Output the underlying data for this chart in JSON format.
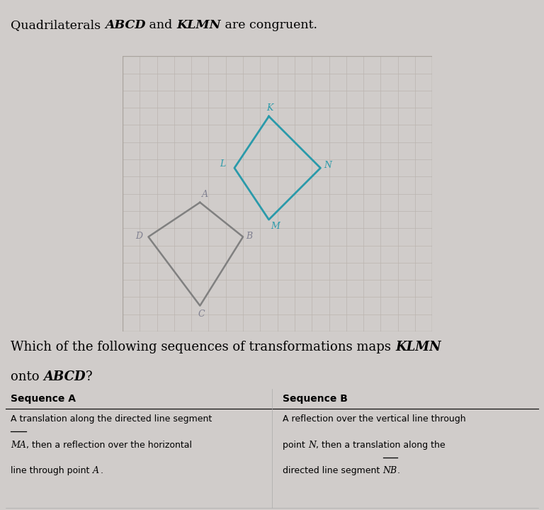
{
  "background_color": "#d0ccca",
  "grid_bg": "#ece8e4",
  "grid_line_color": "#bbb5af",
  "abcd_color": "#808080",
  "klmn_color": "#2a9aaa",
  "label_color_abcd": "#808090",
  "label_color_klmn": "#2a9aaa",
  "grid_rows": 16,
  "grid_cols": 18,
  "A": [
    4.5,
    7.5
  ],
  "B": [
    7.0,
    5.5
  ],
  "C": [
    4.5,
    1.5
  ],
  "D": [
    1.5,
    5.5
  ],
  "K": [
    8.5,
    12.5
  ],
  "L": [
    6.5,
    9.5
  ],
  "M": [
    8.5,
    6.5
  ],
  "N": [
    11.5,
    9.5
  ]
}
